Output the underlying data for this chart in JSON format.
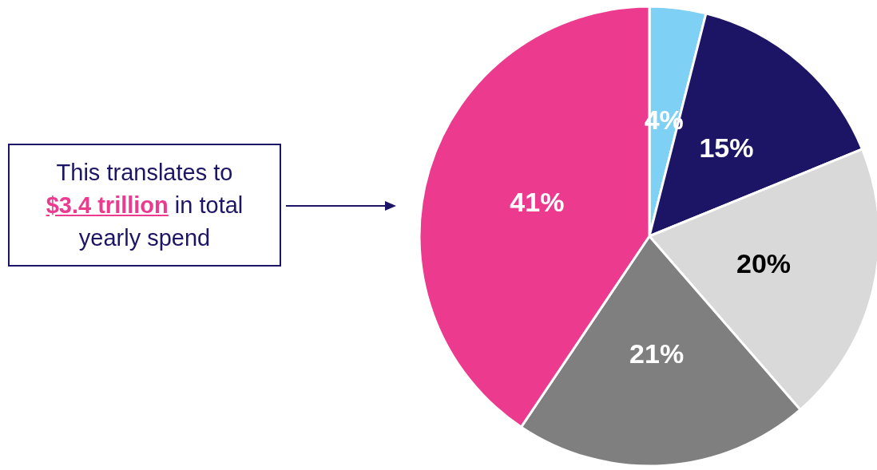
{
  "chart_data": {
    "type": "pie",
    "categories": [
      null,
      null,
      null,
      null,
      null
    ],
    "values": [
      4,
      15,
      20,
      21,
      41
    ],
    "colors": [
      "#7fd0f5",
      "#1c1565",
      "#d9d9d9",
      "#7f7f7f",
      "#ec3b8e"
    ],
    "value_labels": [
      "4%",
      "15%",
      "20%",
      "21%",
      "41%"
    ],
    "annotations": [
      "This translates to",
      "$3.4 trillion",
      "in total yearly spend"
    ]
  }
}
